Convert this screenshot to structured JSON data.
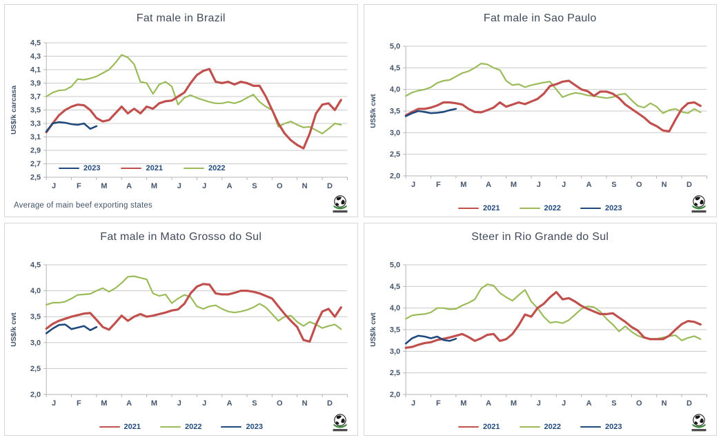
{
  "months": [
    "J",
    "F",
    "M",
    "A",
    "M",
    "J",
    "J",
    "A",
    "S",
    "O",
    "N",
    "D"
  ],
  "colors": {
    "series_2021": "#c0504d",
    "series_2022": "#9bbb59",
    "series_2023": "#1f497d",
    "gridline": "#c9c9c9",
    "axis": "#b3b3b3",
    "tick_text": "#44546a",
    "title_text": "#3f4a5a",
    "legend_text": "#1f497d",
    "logo_green": "#3a8a3a"
  },
  "logo": {
    "icon": "globe-logo"
  },
  "chart_data": [
    {
      "type": "line",
      "title": "Fat male in Brazil",
      "ylabel": "US$/k carcasa",
      "footer": "Average  of main  beef exporting states",
      "ymin": 2.5,
      "ymax": 4.5,
      "ystep": 0.2,
      "yticks": [
        "2,5",
        "2,7",
        "2,9",
        "3,1",
        "3,3",
        "3,5",
        "3,7",
        "3,9",
        "4,1",
        "4,3",
        "4,5"
      ],
      "legend": [
        "2023",
        "2021",
        "2022"
      ],
      "legend_position": "inside-bottom-left",
      "grid": true,
      "series": [
        {
          "name": "2021",
          "color": "#c0504d",
          "values": [
            3.17,
            3.3,
            3.42,
            3.5,
            3.55,
            3.58,
            3.57,
            3.5,
            3.38,
            3.33,
            3.35,
            3.45,
            3.55,
            3.45,
            3.52,
            3.45,
            3.55,
            3.52,
            3.6,
            3.63,
            3.64,
            3.7,
            3.76,
            3.9,
            4.02,
            4.08,
            4.11,
            3.92,
            3.9,
            3.92,
            3.88,
            3.92,
            3.9,
            3.86,
            3.86,
            3.7,
            3.5,
            3.3,
            3.15,
            3.05,
            2.98,
            2.93,
            3.15,
            3.45,
            3.58,
            3.6,
            3.5,
            3.65
          ]
        },
        {
          "name": "2022",
          "color": "#9bbb59",
          "values": [
            3.7,
            3.76,
            3.79,
            3.8,
            3.85,
            3.96,
            3.95,
            3.97,
            4.0,
            4.05,
            4.1,
            4.2,
            4.32,
            4.28,
            4.18,
            3.92,
            3.9,
            3.74,
            3.88,
            3.92,
            3.85,
            3.58,
            3.68,
            3.72,
            3.68,
            3.65,
            3.62,
            3.6,
            3.6,
            3.62,
            3.6,
            3.63,
            3.68,
            3.73,
            3.62,
            3.55,
            3.5,
            3.25,
            3.3,
            3.33,
            3.28,
            3.24,
            3.25,
            3.2,
            3.15,
            3.22,
            3.3,
            3.28
          ]
        },
        {
          "name": "2023",
          "color": "#1f497d",
          "values": [
            3.18,
            3.3,
            3.32,
            3.31,
            3.29,
            3.28,
            3.3,
            3.22,
            3.26
          ]
        }
      ]
    },
    {
      "type": "line",
      "title": "Fat male in Sao Paulo",
      "ylabel": "US$/k cwt",
      "footer": "",
      "ymin": 2.0,
      "ymax": 5.0,
      "ystep": 0.5,
      "yticks": [
        "2,0",
        "2,5",
        "3,0",
        "3,5",
        "4,0",
        "4,5",
        "5,0"
      ],
      "legend": [
        "2021",
        "2022",
        "2023"
      ],
      "legend_position": "bottom-center",
      "grid": true,
      "series": [
        {
          "name": "2021",
          "color": "#c0504d",
          "values": [
            3.4,
            3.48,
            3.55,
            3.55,
            3.58,
            3.63,
            3.7,
            3.7,
            3.68,
            3.65,
            3.55,
            3.48,
            3.47,
            3.52,
            3.58,
            3.7,
            3.6,
            3.65,
            3.7,
            3.66,
            3.72,
            3.78,
            3.9,
            4.08,
            4.12,
            4.18,
            4.2,
            4.1,
            4.0,
            3.96,
            3.85,
            3.95,
            3.95,
            3.9,
            3.8,
            3.65,
            3.55,
            3.45,
            3.35,
            3.22,
            3.15,
            3.05,
            3.03,
            3.3,
            3.55,
            3.68,
            3.7,
            3.62
          ]
        },
        {
          "name": "2022",
          "color": "#9bbb59",
          "values": [
            3.85,
            3.93,
            3.97,
            4.0,
            4.05,
            4.15,
            4.2,
            4.22,
            4.3,
            4.38,
            4.42,
            4.5,
            4.6,
            4.58,
            4.5,
            4.45,
            4.2,
            4.1,
            4.12,
            4.05,
            4.1,
            4.13,
            4.16,
            4.18,
            4.0,
            3.82,
            3.88,
            3.92,
            3.9,
            3.86,
            3.85,
            3.82,
            3.8,
            3.82,
            3.88,
            3.9,
            3.75,
            3.62,
            3.58,
            3.68,
            3.6,
            3.45,
            3.52,
            3.55,
            3.48,
            3.45,
            3.55,
            3.47
          ]
        },
        {
          "name": "2023",
          "color": "#1f497d",
          "values": [
            3.38,
            3.45,
            3.5,
            3.48,
            3.45,
            3.46,
            3.48,
            3.52,
            3.55
          ]
        }
      ]
    },
    {
      "type": "line",
      "title": "Fat male in Mato Grosso do Sul",
      "ylabel": "US$/k cwt",
      "footer": "",
      "ymin": 2.0,
      "ymax": 4.5,
      "ystep": 0.5,
      "yticks": [
        "2,0",
        "2,5",
        "3,0",
        "3,5",
        "4,0",
        "4,5"
      ],
      "legend": [
        "2021",
        "2022",
        "2023"
      ],
      "legend_position": "bottom-center",
      "grid": true,
      "series": [
        {
          "name": "2021",
          "color": "#c0504d",
          "values": [
            3.27,
            3.36,
            3.42,
            3.46,
            3.5,
            3.53,
            3.56,
            3.57,
            3.44,
            3.3,
            3.25,
            3.38,
            3.52,
            3.42,
            3.5,
            3.55,
            3.5,
            3.52,
            3.55,
            3.58,
            3.62,
            3.64,
            3.75,
            3.95,
            4.08,
            4.13,
            4.12,
            3.95,
            3.93,
            3.93,
            3.96,
            4.0,
            4.0,
            3.98,
            3.95,
            3.9,
            3.85,
            3.7,
            3.55,
            3.42,
            3.3,
            3.05,
            3.02,
            3.35,
            3.6,
            3.65,
            3.5,
            3.68
          ]
        },
        {
          "name": "2022",
          "color": "#9bbb59",
          "values": [
            3.73,
            3.77,
            3.77,
            3.79,
            3.85,
            3.92,
            3.93,
            3.94,
            4.0,
            4.05,
            3.98,
            4.05,
            4.15,
            4.27,
            4.28,
            4.25,
            4.22,
            3.95,
            3.9,
            3.93,
            3.76,
            3.85,
            3.92,
            3.88,
            3.7,
            3.65,
            3.7,
            3.72,
            3.65,
            3.6,
            3.58,
            3.6,
            3.63,
            3.68,
            3.75,
            3.68,
            3.55,
            3.42,
            3.5,
            3.52,
            3.4,
            3.32,
            3.4,
            3.35,
            3.28,
            3.32,
            3.35,
            3.26
          ]
        },
        {
          "name": "2023",
          "color": "#1f497d",
          "values": [
            3.18,
            3.27,
            3.34,
            3.35,
            3.26,
            3.29,
            3.32,
            3.24,
            3.3
          ]
        }
      ]
    },
    {
      "type": "line",
      "title": "Steer  in Rio Grande do Sul",
      "ylabel": "US$/k cwt",
      "footer": "",
      "ymin": 2.0,
      "ymax": 5.0,
      "ystep": 0.5,
      "yticks": [
        "2,0",
        "2,5",
        "3,0",
        "3,5",
        "4,0",
        "4,5",
        "5,0"
      ],
      "legend": [
        "2021",
        "2022",
        "2023"
      ],
      "legend_position": "bottom-center",
      "grid": true,
      "series": [
        {
          "name": "2021",
          "color": "#c0504d",
          "values": [
            3.08,
            3.1,
            3.15,
            3.19,
            3.21,
            3.26,
            3.29,
            3.32,
            3.36,
            3.4,
            3.33,
            3.24,
            3.3,
            3.38,
            3.4,
            3.24,
            3.28,
            3.4,
            3.6,
            3.85,
            3.8,
            4.0,
            4.1,
            4.25,
            4.37,
            4.2,
            4.23,
            4.15,
            4.05,
            3.98,
            3.92,
            3.86,
            3.86,
            3.88,
            3.78,
            3.68,
            3.56,
            3.48,
            3.32,
            3.28,
            3.28,
            3.28,
            3.36,
            3.5,
            3.63,
            3.7,
            3.68,
            3.62
          ]
        },
        {
          "name": "2022",
          "color": "#9bbb59",
          "values": [
            3.75,
            3.83,
            3.85,
            3.86,
            3.9,
            4.0,
            4.0,
            3.97,
            3.98,
            4.06,
            4.12,
            4.2,
            4.45,
            4.55,
            4.52,
            4.35,
            4.25,
            4.17,
            4.3,
            4.42,
            4.15,
            4.0,
            3.8,
            3.66,
            3.68,
            3.65,
            3.72,
            3.85,
            3.98,
            4.04,
            4.02,
            3.92,
            3.75,
            3.62,
            3.46,
            3.58,
            3.45,
            3.36,
            3.31,
            3.29,
            3.29,
            3.32,
            3.35,
            3.37,
            3.25,
            3.31,
            3.35,
            3.28
          ]
        },
        {
          "name": "2023",
          "color": "#1f497d",
          "values": [
            3.18,
            3.3,
            3.36,
            3.34,
            3.3,
            3.34,
            3.26,
            3.24,
            3.29
          ]
        }
      ]
    }
  ]
}
